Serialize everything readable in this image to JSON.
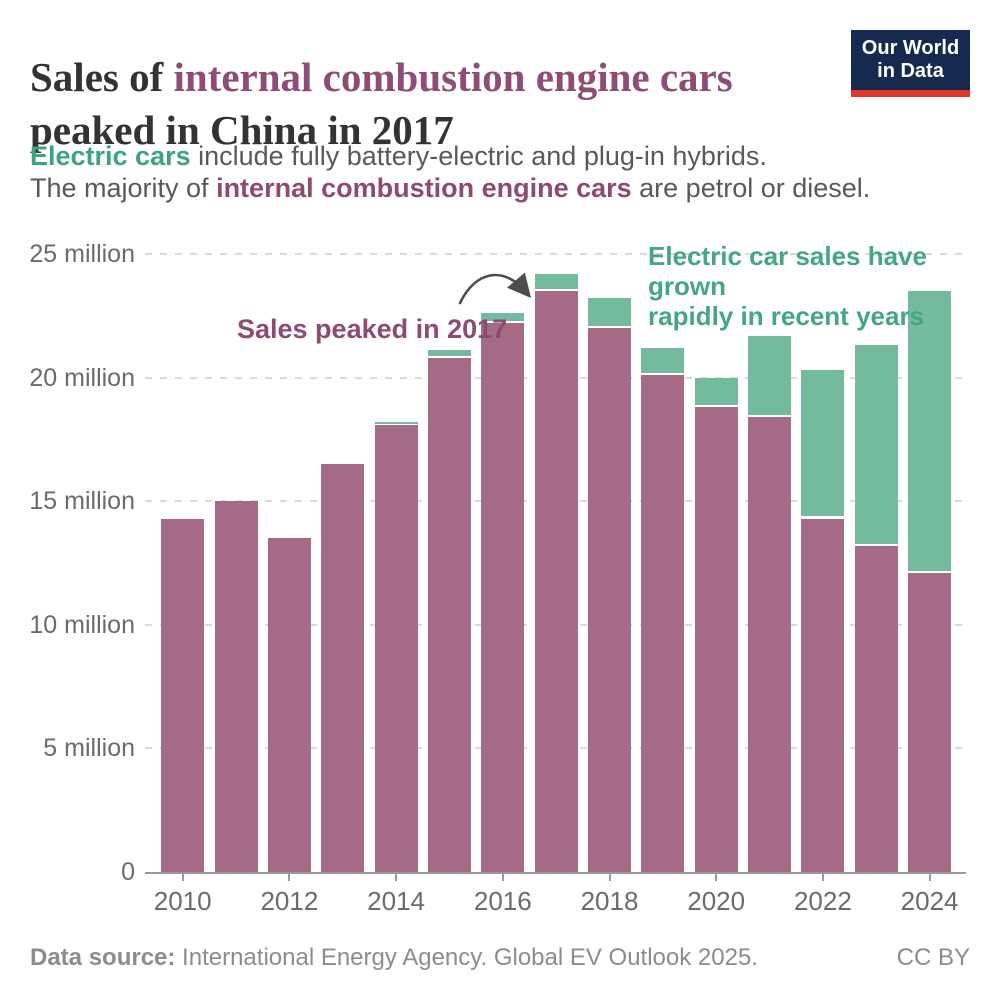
{
  "title": {
    "pre": "Sales of ",
    "accent": "internal combustion engine cars",
    "post": " peaked in China in 2017"
  },
  "subtitle": {
    "line1_accent": "Electric cars",
    "line1_rest": " include fully battery-electric and plug-in hybrids.",
    "line2_pre": "The majority of ",
    "line2_accent": "internal combustion engine cars",
    "line2_rest": " are petrol or diesel."
  },
  "logo": {
    "line1": "Our World",
    "line2": "in Data"
  },
  "footer": {
    "source_label": "Data source:",
    "source_text": " International Energy Agency. Global EV Outlook 2025.",
    "license": "CC BY"
  },
  "colors": {
    "ice_bar": "#a56a86",
    "ev_bar": "#74bb9d",
    "ice_text": "#8d4a72",
    "ev_text": "#45a683",
    "title_accent": "#8e4d76",
    "logo_navy": "#16294e",
    "logo_red": "#e0362c",
    "axis": "#999999",
    "grid": "#dadada"
  },
  "chart_data": {
    "type": "bar",
    "stacked": true,
    "title": "Sales of internal combustion engine cars peaked in China in 2017",
    "xlabel": "",
    "ylabel": "",
    "unit": "million",
    "ylim": [
      0,
      25
    ],
    "grid": "dashed horizontal at 5-million intervals",
    "legend": "none (series identified by colored text in subtitle)",
    "categories": [
      2010,
      2011,
      2012,
      2013,
      2014,
      2015,
      2016,
      2017,
      2018,
      2019,
      2020,
      2021,
      2022,
      2023,
      2024
    ],
    "series": [
      {
        "name": "Internal combustion engine cars",
        "values": [
          14.3,
          15.0,
          13.5,
          16.5,
          18.1,
          20.8,
          22.2,
          23.5,
          22.0,
          20.1,
          18.8,
          18.4,
          14.3,
          13.2,
          12.1
        ]
      },
      {
        "name": "Electric cars",
        "values": [
          0,
          0,
          0,
          0,
          0.1,
          0.3,
          0.4,
          0.7,
          1.2,
          1.1,
          1.2,
          3.3,
          6.0,
          8.1,
          11.4
        ]
      }
    ],
    "yticks": [
      {
        "value": 0,
        "label": "0"
      },
      {
        "value": 5,
        "label": "5 million"
      },
      {
        "value": 10,
        "label": "10 million"
      },
      {
        "value": 15,
        "label": "15 million"
      },
      {
        "value": 20,
        "label": "20 million"
      },
      {
        "value": 25,
        "label": "25 million"
      }
    ],
    "xtick_years": [
      2010,
      2012,
      2014,
      2016,
      2018,
      2020,
      2022,
      2024
    ],
    "annotations": {
      "peak": "Sales peaked in 2017",
      "growth_line1": "Electric car sales have grown",
      "growth_line2": "rapidly in recent years"
    }
  }
}
